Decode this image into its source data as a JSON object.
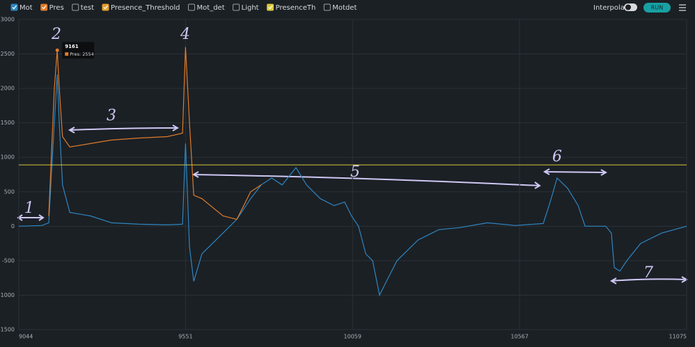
{
  "toolbar": {
    "interpolate": "Interpolate",
    "run": "RUN"
  },
  "chart_data": {
    "type": "line",
    "x": [
      9044,
      9114,
      9135,
      9152,
      9161,
      9167,
      9177,
      9199,
      9262,
      9326,
      9410,
      9495,
      9542,
      9551,
      9563,
      9576,
      9601,
      9665,
      9707,
      9749,
      9781,
      9813,
      9845,
      9887,
      9919,
      9961,
      10003,
      10035,
      10056,
      10077,
      10099,
      10120,
      10141,
      10162,
      10194,
      10258,
      10321,
      10385,
      10469,
      10554,
      10639,
      10660,
      10681,
      10713,
      10745,
      10766,
      10829,
      10846,
      10855,
      10872,
      10893,
      10935,
      10999,
      11075
    ],
    "series": [
      {
        "name": "Mot",
        "checked": true,
        "color": "#2f86c2",
        "values": [
          0,
          10,
          50,
          1500,
          2200,
          1500,
          600,
          200,
          150,
          50,
          30,
          20,
          30,
          1200,
          -300,
          -800,
          -400,
          -100,
          100,
          400,
          600,
          700,
          600,
          850,
          600,
          400,
          300,
          350,
          150,
          0,
          -400,
          -500,
          -1000,
          -800,
          -500,
          -200,
          -50,
          -20,
          50,
          10,
          40,
          350,
          700,
          550,
          300,
          0,
          0,
          -100,
          -600,
          -650,
          -500,
          -250,
          -100,
          0
        ]
      },
      {
        "name": "Pres",
        "checked": true,
        "color": "#e07b2a",
        "values": [
          null,
          null,
          150,
          2000,
          2554,
          2000,
          1300,
          1150,
          1200,
          1250,
          1280,
          1300,
          1350,
          2600,
          1500,
          450,
          400,
          150,
          100,
          500,
          600,
          null,
          null,
          null,
          null,
          null,
          null,
          null,
          null,
          null,
          null,
          null,
          null,
          null,
          null,
          null,
          null,
          null,
          null,
          null,
          null,
          null,
          null,
          null,
          null,
          null,
          null,
          null,
          null,
          null,
          null,
          null,
          null,
          null
        ]
      },
      {
        "name": "test",
        "checked": false,
        "color": "#888888"
      },
      {
        "name": "Presence_Threshold",
        "checked": true,
        "color": "#e5a02a"
      },
      {
        "name": "Mot_det",
        "checked": false,
        "color": "#888888"
      },
      {
        "name": "Light",
        "checked": false,
        "color": "#888888"
      },
      {
        "name": "PresenceTh",
        "checked": true,
        "color": "#d8c93a",
        "threshold": 890
      },
      {
        "name": "Motdet",
        "checked": false,
        "color": "#888888"
      }
    ],
    "xlim": [
      9044,
      11075
    ],
    "xticks": [
      9044,
      9551,
      10059,
      10567,
      11075
    ],
    "ylim": [
      -1500,
      3000
    ],
    "yticks": [
      -1500,
      -1000,
      -500,
      0,
      500,
      1000,
      1500,
      2000,
      2500,
      3000
    ],
    "grid": true,
    "tooltip": {
      "point": 4,
      "text": "Pres: 2554"
    },
    "annotations": [
      "1",
      "2",
      "3",
      "4",
      "5",
      "6",
      "7"
    ]
  }
}
